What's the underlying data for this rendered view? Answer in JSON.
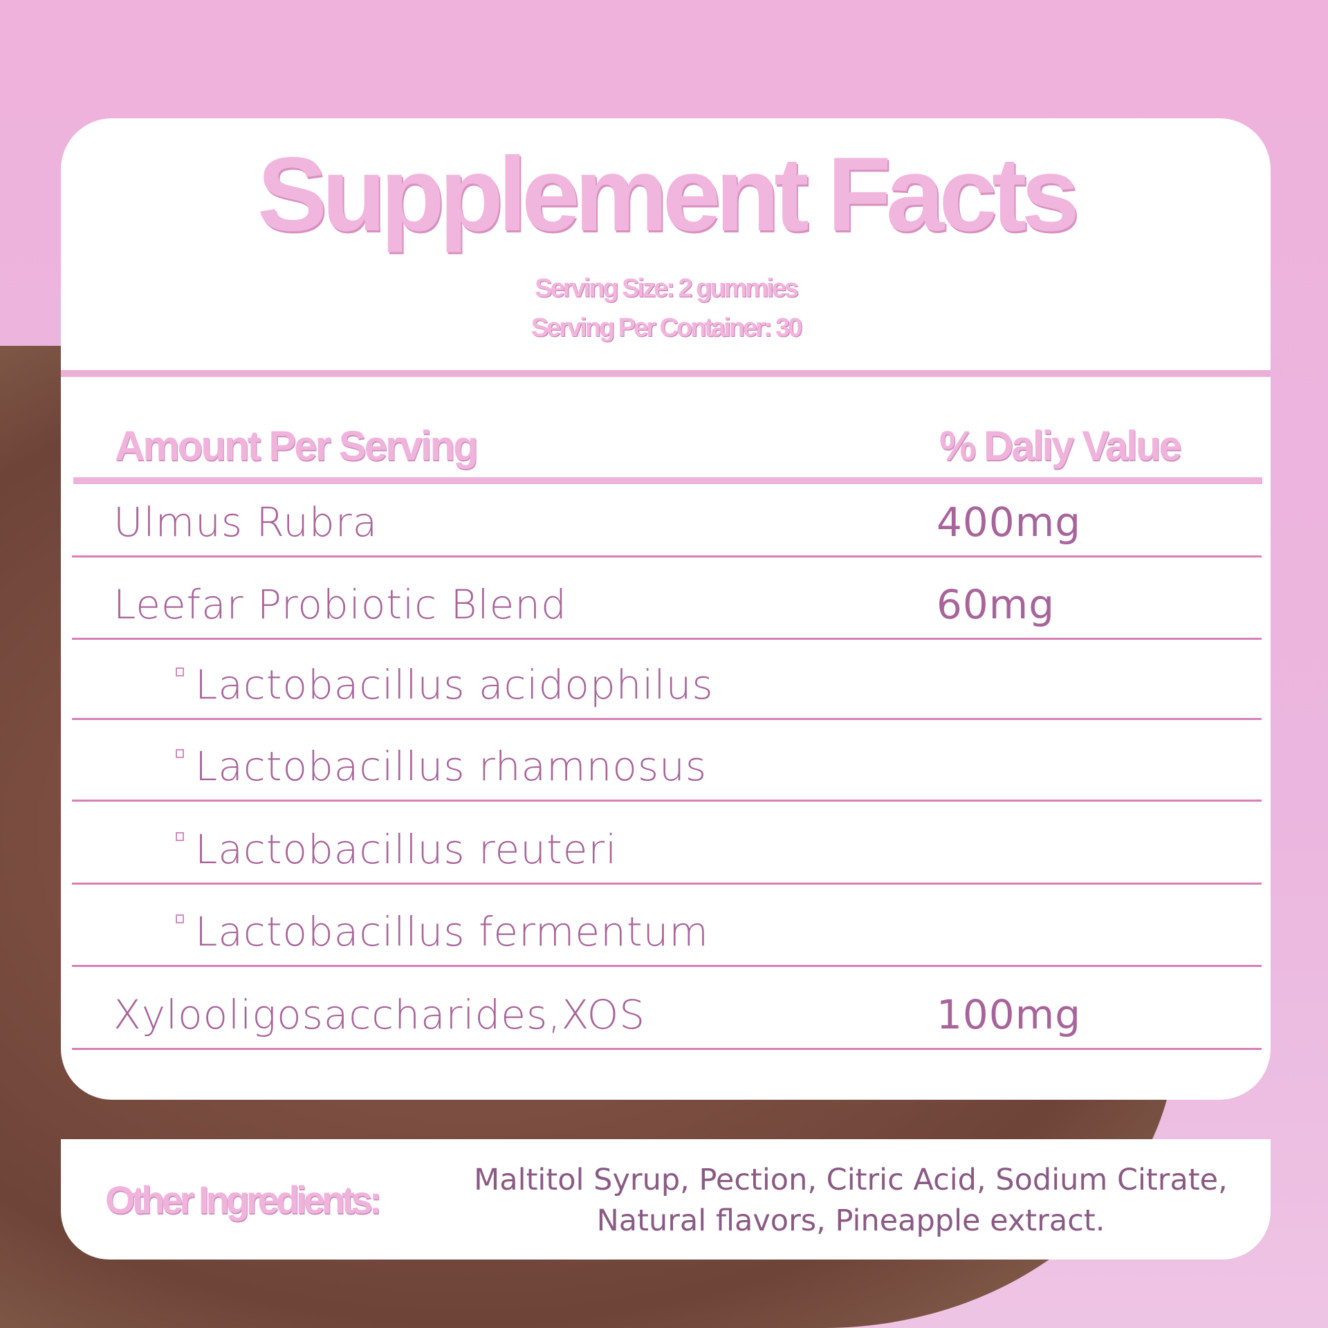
{
  "title": "Supplement Facts",
  "serving_size": "Serving Size: 2 gummies",
  "servings_per_container": "Serving Per Container: 30",
  "header": {
    "amount": "Amount Per Serving",
    "daily_value": "% Daliy Value"
  },
  "rows": [
    {
      "name": "Ulmus Rubra",
      "value": "400mg",
      "indent": false
    },
    {
      "name": "Leefar Probiotic Blend",
      "value": "60mg",
      "indent": false
    },
    {
      "name": "Lactobacillus acidophilus",
      "value": "",
      "indent": true
    },
    {
      "name": "Lactobacillus rhamnosus",
      "value": "",
      "indent": true
    },
    {
      "name": "Lactobacillus reuteri",
      "value": "",
      "indent": true
    },
    {
      "name": "Lactobacillus fermentum",
      "value": "",
      "indent": true
    },
    {
      "name": "Xylooligosaccharides,XOS",
      "value": "100mg",
      "indent": false
    }
  ],
  "other_ingredients": {
    "label": "Other Ingredients:",
    "line1": "Maltitol Syrup, Pection, Citric Acid, Sodium Citrate,",
    "line2": "Natural flavors, Pineapple extract."
  },
  "colors": {
    "accent": "#f0b4dc",
    "text": "#a8649a",
    "background": "#eeb2dc"
  }
}
